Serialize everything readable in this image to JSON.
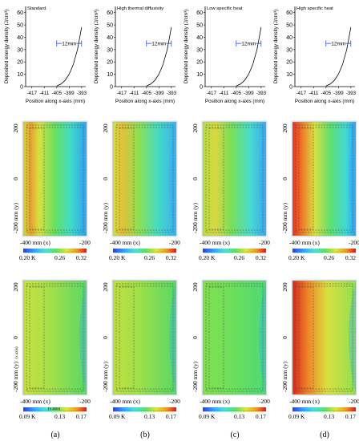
{
  "energy_chart": {
    "ylabel": "Deposited energy density (J/cm³)",
    "xlabel": "Position along x-axis (mm)",
    "y_ticks": [
      "0",
      "10",
      "20",
      "30",
      "40",
      "50",
      "60"
    ],
    "x_ticks": [
      "-417",
      "-411",
      "-405",
      "-399",
      "-393"
    ],
    "span_label": "12mm",
    "ylim": [
      0,
      65
    ]
  },
  "columns": [
    {
      "title": "Standard",
      "letter": "(a)"
    },
    {
      "title": "High thermal diffusivity",
      "letter": "(b)"
    },
    {
      "title": "Low specific heat",
      "letter": "(c)"
    },
    {
      "title": "High specific heat",
      "letter": "(d)"
    }
  ],
  "maps": {
    "y_ticks": [
      "200",
      "0",
      "-200 mm (y)"
    ],
    "x_ticks": [
      "-400 mm (x)",
      "-200"
    ],
    "row_top_scale": [
      "0.20 K",
      "0.26",
      "0.32"
    ],
    "row_bottom_scale": [
      "0.09 K",
      "0.13",
      "0.17"
    ],
    "overlay_left_ylabel": "(x axis)",
    "overlay_left_xlabel": "(x axis)"
  },
  "colors": {
    "scale": [
      "#2a3ee0",
      "#2fa8ff",
      "#48e0e0",
      "#5fe060",
      "#d8e83a",
      "#f59a20",
      "#d81a10"
    ]
  },
  "chart_data": {
    "type": "line",
    "title": "",
    "xlabel": "Position along x-axis (mm)",
    "ylabel": "Deposited energy density (J/cm³)",
    "x": [
      -405,
      -403,
      -401,
      -399,
      -397,
      -395,
      -393
    ],
    "series": [
      {
        "values": [
          0.5,
          2,
          5,
          10,
          18,
          30,
          48
        ]
      }
    ],
    "xlim": [
      -420,
      -391
    ],
    "ylim": [
      0,
      65
    ]
  }
}
